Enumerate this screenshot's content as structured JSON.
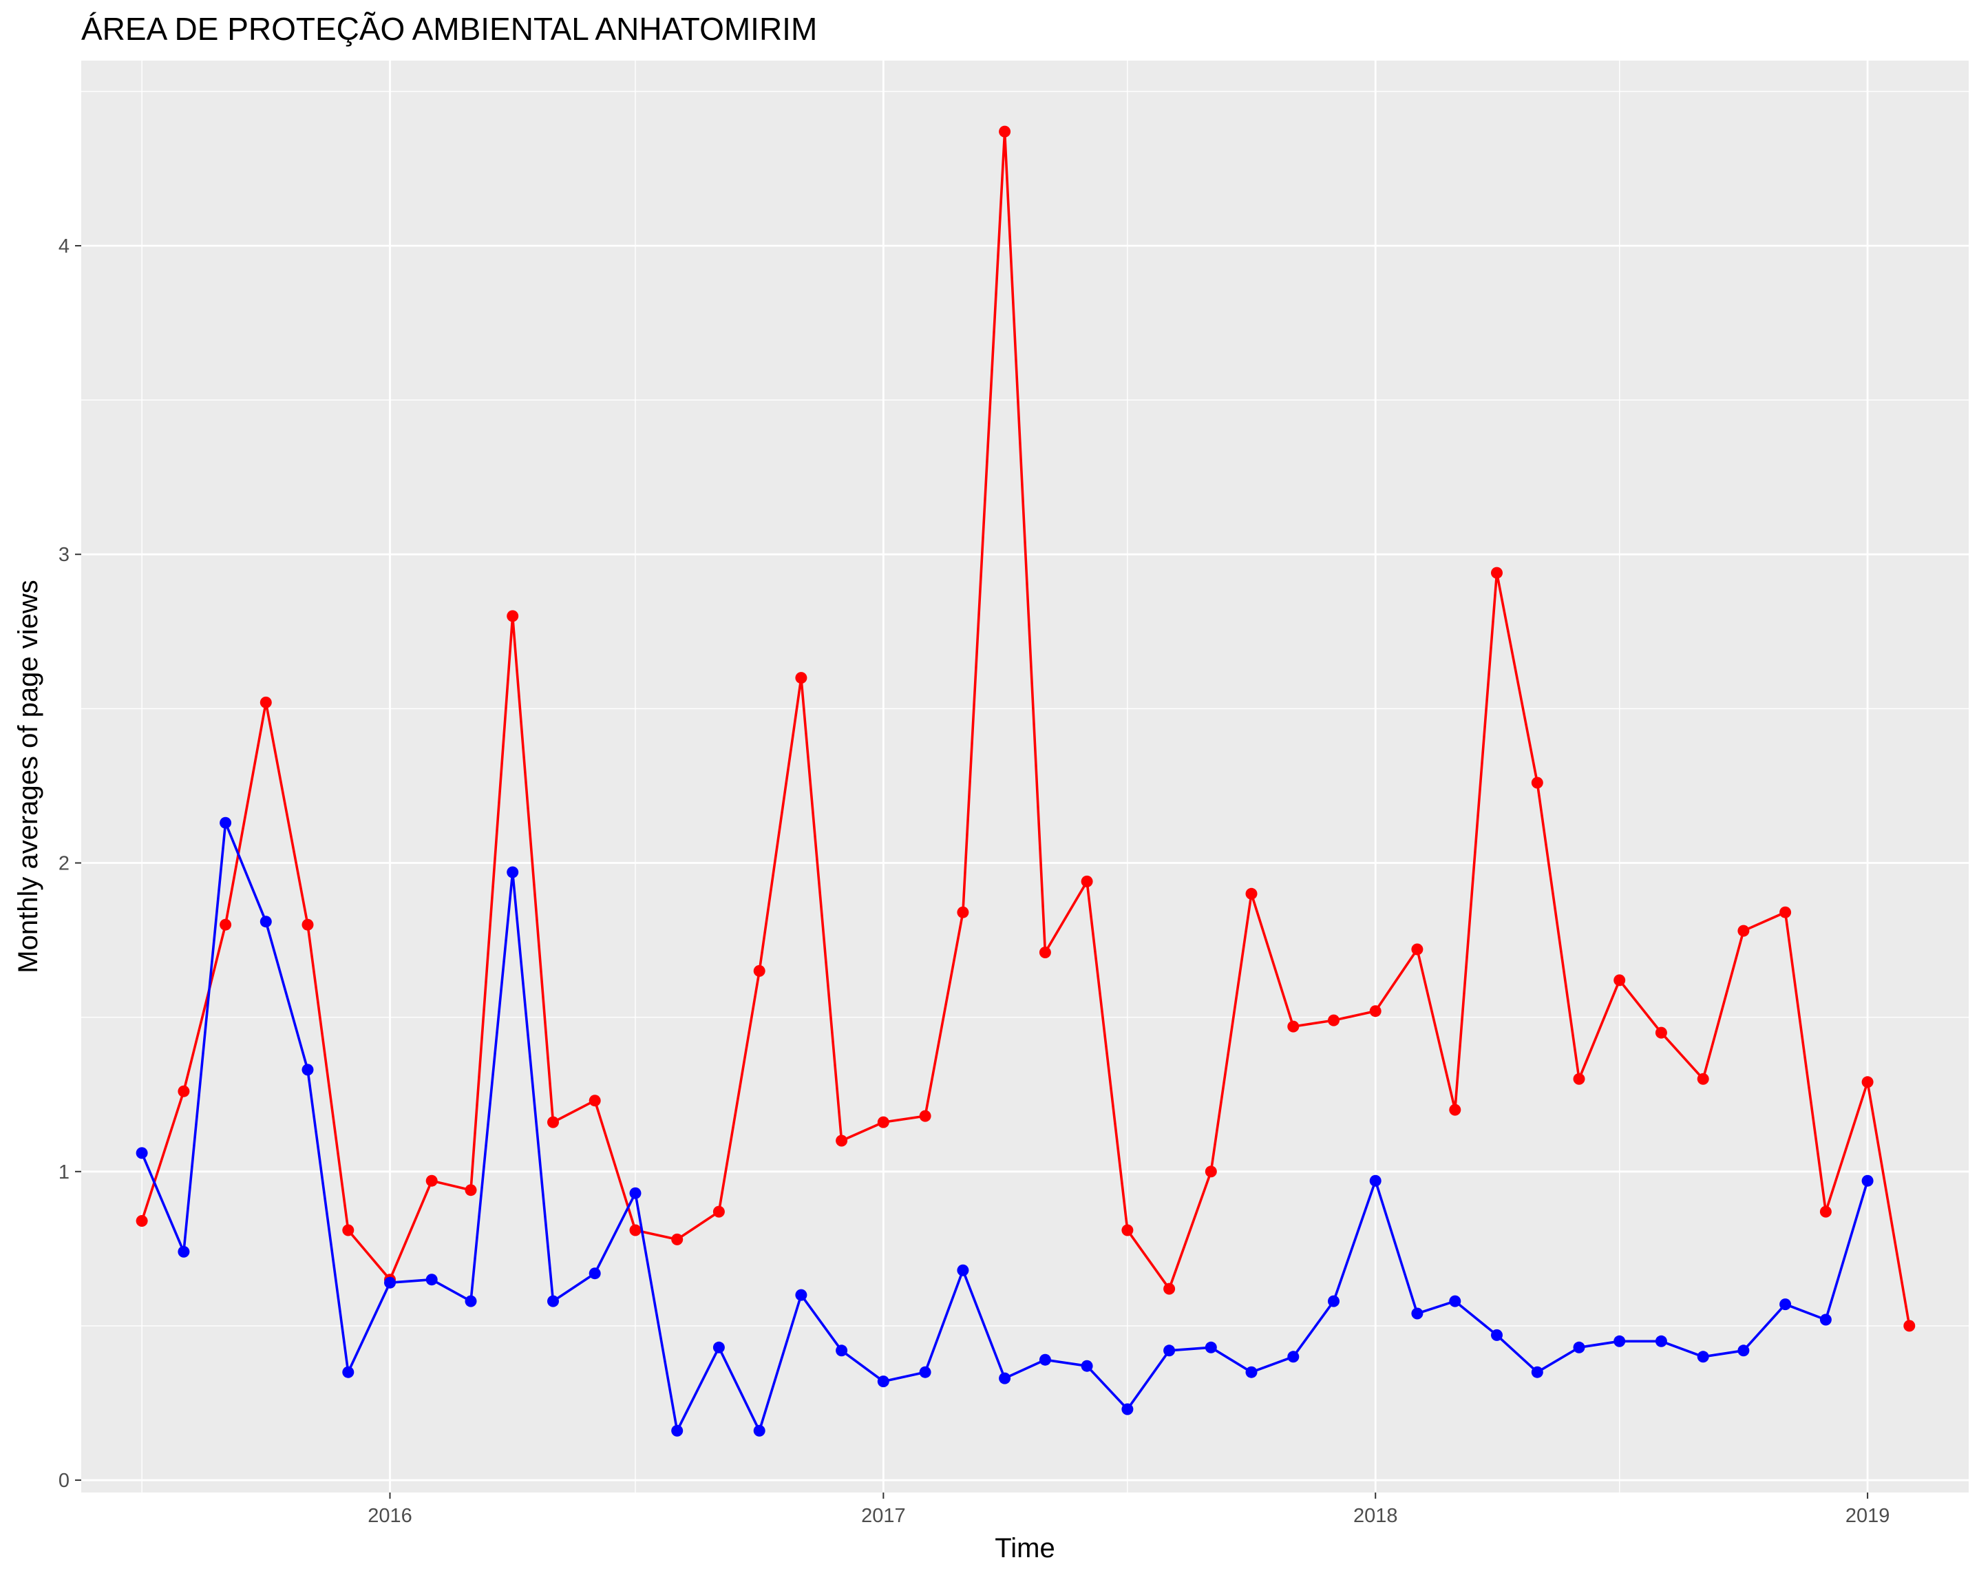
{
  "chart_data": {
    "type": "line",
    "title": "ÁREA DE PROTEÇÃO AMBIENTAL ANHATOMIRIM",
    "xlabel": "Time",
    "ylabel": "Monthly averages of page views",
    "x_ticks": [
      "2016",
      "2017",
      "2018",
      "2019"
    ],
    "y_ticks": [
      "0",
      "1",
      "2",
      "3",
      "4"
    ],
    "xlim": [
      "2015-05-17",
      "2019-03-17"
    ],
    "ylim": [
      -0.04,
      4.6
    ],
    "grid": true,
    "legend": "none",
    "background": "#ebebeb",
    "series": [
      {
        "color": "#ff0000",
        "x": [
          "2015-07-01",
          "2015-08-01",
          "2015-09-01",
          "2015-10-01",
          "2015-11-01",
          "2015-12-01",
          "2016-01-01",
          "2016-02-01",
          "2016-03-01",
          "2016-04-01",
          "2016-05-01",
          "2016-06-01",
          "2016-07-01",
          "2016-08-01",
          "2016-09-01",
          "2016-10-01",
          "2016-11-01",
          "2016-12-01",
          "2017-01-01",
          "2017-02-01",
          "2017-03-01",
          "2017-04-01",
          "2017-05-01",
          "2017-06-01",
          "2017-07-01",
          "2017-08-01",
          "2017-09-01",
          "2017-10-01",
          "2017-11-01",
          "2017-12-01",
          "2018-01-01",
          "2018-02-01",
          "2018-03-01",
          "2018-04-01",
          "2018-05-01",
          "2018-06-01",
          "2018-07-01",
          "2018-08-01",
          "2018-09-01",
          "2018-10-01",
          "2018-11-01",
          "2018-12-01",
          "2019-01-01",
          "2019-02-01"
        ],
        "values": [
          0.84,
          1.26,
          1.8,
          2.52,
          1.8,
          0.81,
          0.65,
          0.97,
          0.94,
          2.8,
          1.16,
          1.23,
          0.81,
          0.78,
          0.87,
          1.65,
          2.6,
          1.1,
          1.16,
          1.18,
          1.84,
          4.37,
          1.71,
          1.94,
          0.81,
          0.62,
          1.0,
          1.9,
          1.47,
          1.49,
          1.52,
          1.72,
          1.2,
          2.94,
          2.26,
          1.3,
          1.62,
          1.45,
          1.3,
          1.78,
          1.84,
          0.87,
          1.29,
          0.5
        ]
      },
      {
        "color": "#0000ff",
        "x": [
          "2015-07-01",
          "2015-08-01",
          "2015-09-01",
          "2015-10-01",
          "2015-11-01",
          "2015-12-01",
          "2016-01-01",
          "2016-02-01",
          "2016-03-01",
          "2016-04-01",
          "2016-05-01",
          "2016-06-01",
          "2016-07-01",
          "2016-08-01",
          "2016-09-01",
          "2016-10-01",
          "2016-11-01",
          "2016-12-01",
          "2017-01-01",
          "2017-02-01",
          "2017-03-01",
          "2017-04-01",
          "2017-05-01",
          "2017-06-01",
          "2017-07-01",
          "2017-08-01",
          "2017-09-01",
          "2017-10-01",
          "2017-11-01",
          "2017-12-01",
          "2018-01-01",
          "2018-02-01",
          "2018-03-01",
          "2018-04-01",
          "2018-05-01",
          "2018-06-01",
          "2018-07-01",
          "2018-08-01",
          "2018-09-01",
          "2018-10-01",
          "2018-11-01",
          "2018-12-01",
          "2019-01-01"
        ],
        "values": [
          1.06,
          0.74,
          2.13,
          1.81,
          1.33,
          0.35,
          0.64,
          0.65,
          0.58,
          1.97,
          0.58,
          0.67,
          0.93,
          0.16,
          0.43,
          0.16,
          0.6,
          0.42,
          0.32,
          0.35,
          0.68,
          0.33,
          0.39,
          0.37,
          0.23,
          0.42,
          0.43,
          0.35,
          0.4,
          0.58,
          0.97,
          0.54,
          0.58,
          0.47,
          0.35,
          0.43,
          0.45,
          0.45,
          0.4,
          0.42,
          0.57,
          0.52,
          0.97
        ]
      }
    ]
  }
}
